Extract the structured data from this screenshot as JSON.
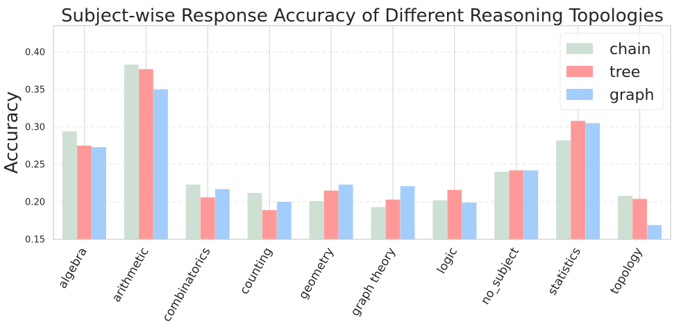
{
  "chart_data": {
    "type": "bar",
    "title": "Subject-wise Response Accuracy of Different Reasoning Topologies",
    "xlabel": "",
    "ylabel": "Accuracy",
    "ylim": [
      0.15,
      0.435
    ],
    "yticks": [
      "0.15",
      "0.20",
      "0.25",
      "0.30",
      "0.35",
      "0.40"
    ],
    "grid": true,
    "legend_position": "top-right",
    "categories": [
      "algebra",
      "arithmetic",
      "combinatorics",
      "counting",
      "geometry",
      "graph theory",
      "logic",
      "no_subject",
      "statistics",
      "topology"
    ],
    "series": [
      {
        "name": "chain",
        "color": "#cde0d3",
        "values": [
          0.294,
          0.383,
          0.223,
          0.212,
          0.201,
          0.193,
          0.202,
          0.24,
          0.282,
          0.208
        ]
      },
      {
        "name": "tree",
        "color": "#ff9999",
        "values": [
          0.275,
          0.377,
          0.206,
          0.189,
          0.215,
          0.203,
          0.216,
          0.242,
          0.308,
          0.204
        ]
      },
      {
        "name": "graph",
        "color": "#a3cdfa",
        "values": [
          0.273,
          0.35,
          0.217,
          0.2,
          0.223,
          0.221,
          0.199,
          0.242,
          0.305,
          0.169
        ]
      }
    ]
  }
}
